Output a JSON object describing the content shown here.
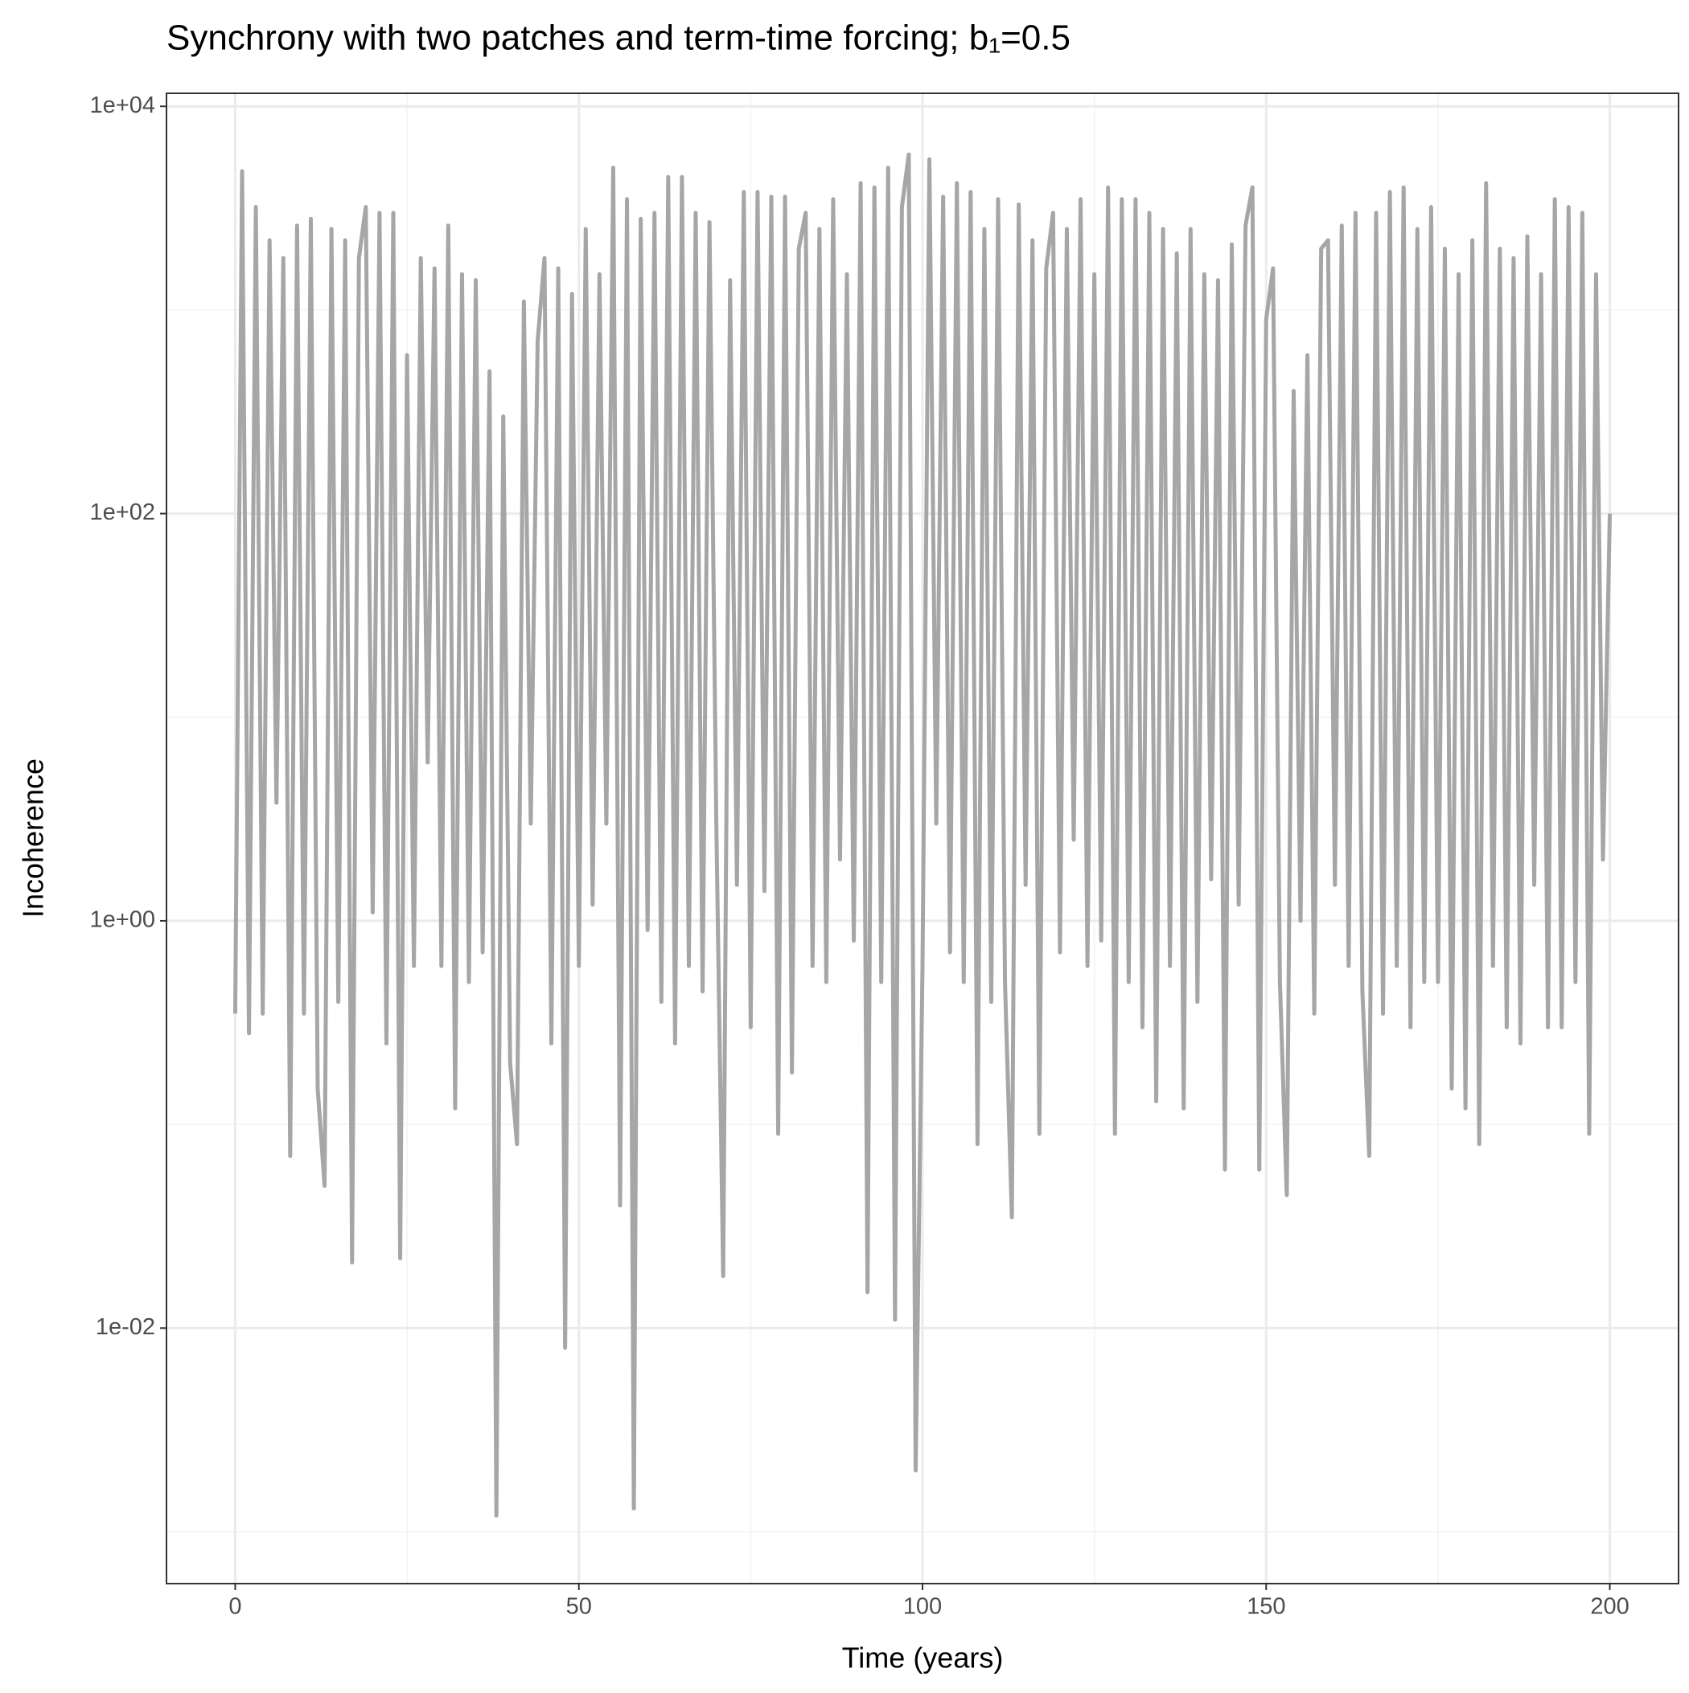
{
  "chart_data": {
    "type": "line",
    "title": "Synchrony with two patches and term-time forcing; b₁=0.5",
    "x_label": "Time (years)",
    "y_label": "Incoherence",
    "color": "#a6a6a6",
    "log_y": true,
    "grid": true,
    "xlim": [
      -10,
      210
    ],
    "ylim": [
      0.000556,
      11590
    ],
    "xticks": [
      0,
      50,
      100,
      150,
      200
    ],
    "x_minor_ticks": [
      25,
      75,
      125,
      175
    ],
    "yticks": [
      {
        "value": 10000,
        "label": "1e+04"
      },
      {
        "value": 100,
        "label": "1e+02"
      },
      {
        "value": 1,
        "label": "1e+00"
      },
      {
        "value": 0.01,
        "label": "1e-02"
      }
    ],
    "y_minor_ticks": [
      1000,
      10,
      0.1,
      0.001
    ],
    "x": [
      0,
      1,
      2,
      3,
      4,
      5,
      6,
      7,
      8,
      9,
      10,
      11,
      12,
      13,
      14,
      15,
      16,
      17,
      18,
      19,
      20,
      21,
      22,
      23,
      24,
      25,
      26,
      27,
      28,
      29,
      30,
      31,
      32,
      33,
      34,
      35,
      36,
      37,
      38,
      39,
      40,
      41,
      42,
      43,
      44,
      45,
      46,
      47,
      48,
      49,
      50,
      51,
      52,
      53,
      54,
      55,
      56,
      57,
      58,
      59,
      60,
      61,
      62,
      63,
      64,
      65,
      66,
      67,
      68,
      69,
      70,
      71,
      72,
      73,
      74,
      75,
      76,
      77,
      78,
      79,
      80,
      81,
      82,
      83,
      84,
      85,
      86,
      87,
      88,
      89,
      90,
      91,
      92,
      93,
      94,
      95,
      96,
      97,
      98,
      99,
      100,
      101,
      102,
      103,
      104,
      105,
      106,
      107,
      108,
      109,
      110,
      111,
      112,
      113,
      114,
      115,
      116,
      117,
      118,
      119,
      120,
      121,
      122,
      123,
      124,
      125,
      126,
      127,
      128,
      129,
      130,
      131,
      132,
      133,
      134,
      135,
      136,
      137,
      138,
      139,
      140,
      141,
      142,
      143,
      144,
      145,
      146,
      147,
      148,
      149,
      150,
      151,
      152,
      153,
      154,
      155,
      156,
      157,
      158,
      159,
      160,
      161,
      162,
      163,
      164,
      165,
      166,
      167,
      168,
      169,
      170,
      171,
      172,
      173,
      174,
      175,
      176,
      177,
      178,
      179,
      180,
      181,
      182,
      183,
      184,
      185,
      186,
      187,
      188,
      189,
      190,
      191,
      192,
      193,
      194,
      195,
      196,
      197,
      198,
      199,
      200
    ],
    "values": [
      0.35,
      4800,
      0.28,
      3200,
      0.35,
      2200,
      3.8,
      1800,
      0.07,
      2600,
      0.35,
      2800,
      0.15,
      0.05,
      2500,
      0.4,
      2200,
      0.021,
      1800,
      3200,
      1.1,
      3000,
      0.25,
      3000,
      0.022,
      600,
      0.6,
      1800,
      6,
      1600,
      0.6,
      2600,
      0.12,
      1500,
      0.5,
      1400,
      0.7,
      500,
      0.0012,
      300,
      0.2,
      0.08,
      1100,
      3,
      700,
      1800,
      0.25,
      1600,
      0.008,
      1200,
      0.6,
      2500,
      1.2,
      1500,
      3,
      5000,
      0.04,
      3500,
      0.0013,
      2800,
      0.9,
      3000,
      0.4,
      4500,
      0.25,
      4500,
      0.6,
      3000,
      0.45,
      2700,
      3,
      0.018,
      1400,
      1.5,
      3800,
      0.3,
      3800,
      1.4,
      3600,
      0.09,
      3600,
      0.18,
      2000,
      3000,
      0.6,
      2500,
      0.5,
      3500,
      2,
      1500,
      0.8,
      4200,
      0.015,
      4000,
      0.5,
      5000,
      0.011,
      3200,
      5800,
      0.002,
      0.6,
      5500,
      3,
      3600,
      0.7,
      4200,
      0.5,
      3800,
      0.08,
      2500,
      0.4,
      3500,
      0.5,
      0.035,
      3300,
      1.5,
      2200,
      0.09,
      1600,
      3000,
      0.7,
      2500,
      2.5,
      3500,
      0.6,
      1500,
      0.8,
      4000,
      0.09,
      3500,
      0.5,
      3500,
      0.3,
      3000,
      0.13,
      2500,
      0.6,
      1900,
      0.12,
      2500,
      0.4,
      1500,
      1.6,
      1400,
      0.06,
      2100,
      1.2,
      2600,
      4000,
      0.06,
      900,
      1600,
      0.5,
      0.045,
      400,
      1,
      600,
      0.35,
      2000,
      2200,
      1.5,
      2600,
      0.6,
      3000,
      0.45,
      0.07,
      3000,
      0.35,
      3800,
      0.6,
      4000,
      0.3,
      2500,
      0.5,
      3200,
      0.5,
      2000,
      0.15,
      1500,
      0.12,
      2200,
      0.08,
      4200,
      0.6,
      2000,
      0.3,
      1800,
      0.25,
      2300,
      1.5,
      1500,
      0.3,
      3500,
      0.3,
      3200,
      0.5,
      3000,
      0.09,
      1500,
      2,
      100
    ]
  }
}
